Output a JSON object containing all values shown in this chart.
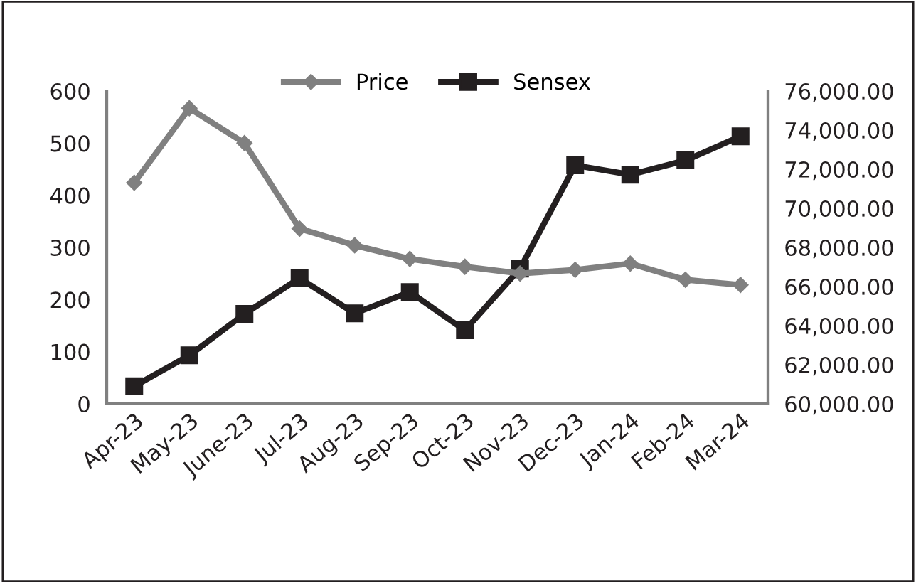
{
  "chart_data": {
    "type": "line",
    "categories": [
      "Apr-23",
      "May-23",
      "June-23",
      "Jul-23",
      "Aug-23",
      "Sep-23",
      "Oct-23",
      "Nov-23",
      "Dec-23",
      "Jan-24",
      "Feb-24",
      "Mar-24"
    ],
    "series": [
      {
        "name": "Price",
        "color": "#808080",
        "marker": "diamond",
        "values": [
          424,
          567,
          500,
          336,
          304,
          278,
          263,
          250,
          257,
          269,
          238,
          228
        ]
      },
      {
        "name": "Sensex",
        "color": "#231f20",
        "marker": "square",
        "axis": "y2",
        "values": [
          60900,
          62480,
          64600,
          66430,
          64630,
          65720,
          63760,
          66920,
          72200,
          71720,
          72450,
          73680
        ]
      }
    ],
    "ylim": [
      0,
      600
    ],
    "yticks": [
      0,
      100,
      200,
      300,
      400,
      500,
      600
    ],
    "y2lim": [
      60000,
      76000
    ],
    "y2ticks": [
      {
        "value": 60000,
        "label": "60,000.00"
      },
      {
        "value": 62000,
        "label": "62,000.00"
      },
      {
        "value": 64000,
        "label": "64,000.00"
      },
      {
        "value": 66000,
        "label": "66,000.00"
      },
      {
        "value": 68000,
        "label": "68,000.00"
      },
      {
        "value": 70000,
        "label": "70,000.00"
      },
      {
        "value": 72000,
        "label": "72,000.00"
      },
      {
        "value": 74000,
        "label": "74,000.00"
      },
      {
        "value": 76000,
        "label": "76,000.00"
      }
    ],
    "legend": "top",
    "grid": false
  }
}
